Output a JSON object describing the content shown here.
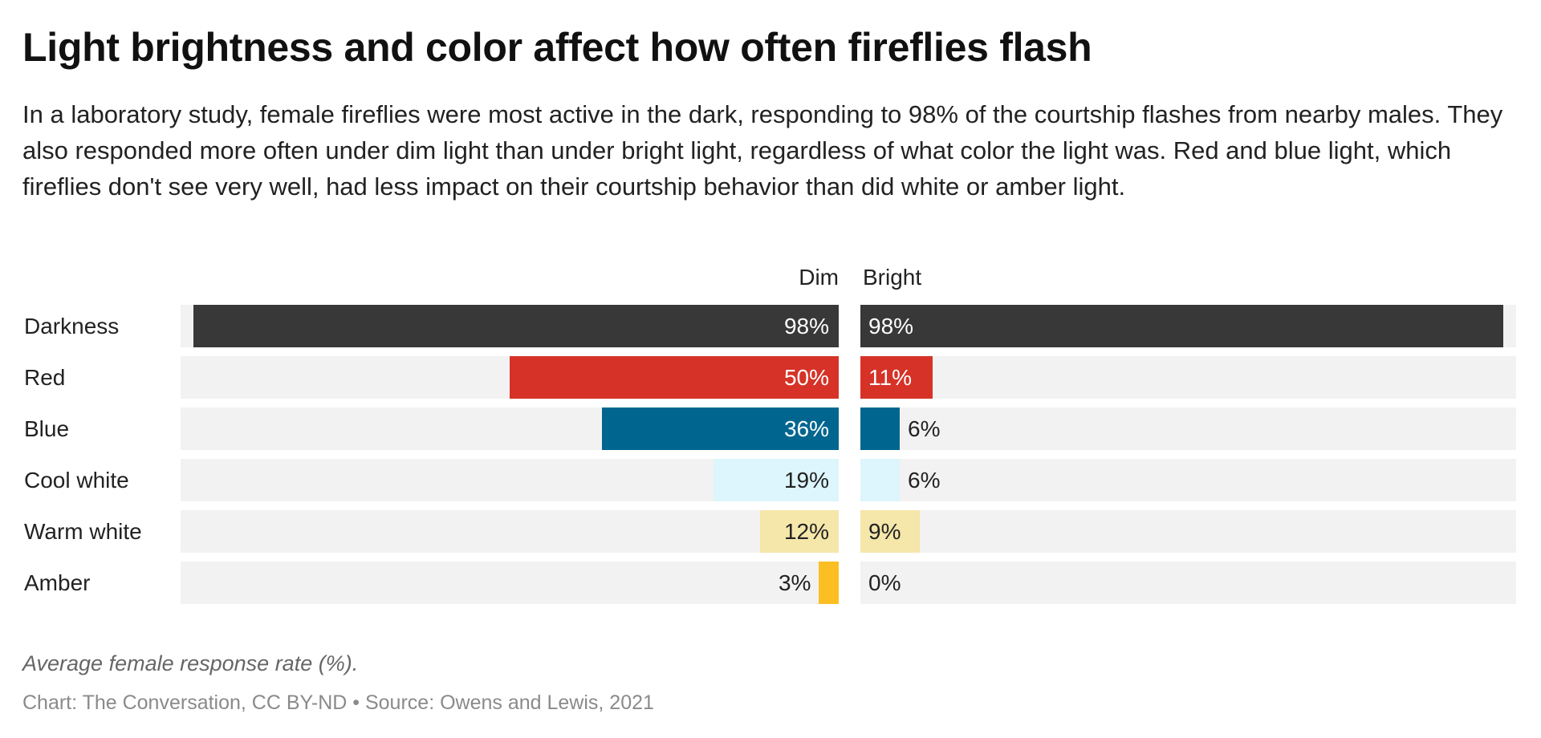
{
  "title": "Light brightness and color affect how often fireflies flash",
  "subtitle": "In a laboratory study, female fireflies were most active in the dark, responding to 98% of the courtship flashes from nearby males. They also responded more often under dim light than under bright light, regardless of what color the light was. Red and blue light, which fireflies don't see very well, had less impact on their courtship behavior than did white or amber light.",
  "note": "Average female response rate (%).",
  "source": "Chart: The Conversation, CC BY-ND • Source: Owens and Lewis, 2021",
  "chart_data": {
    "type": "bar",
    "orientation": "horizontal",
    "layout": "diverging from center (Dim extends left, Bright extends right)",
    "categories": [
      "Darkness",
      "Red",
      "Blue",
      "Cool white",
      "Warm white",
      "Amber"
    ],
    "series": [
      {
        "name": "Dim",
        "values": [
          98,
          50,
          36,
          19,
          12,
          3
        ],
        "labels": [
          "98%",
          "50%",
          "36%",
          "19%",
          "12%",
          "3%"
        ]
      },
      {
        "name": "Bright",
        "values": [
          98,
          11,
          6,
          6,
          9,
          0
        ],
        "labels": [
          "98%",
          "11%",
          "6%",
          "6%",
          "9%",
          "0%"
        ]
      }
    ],
    "colors": [
      "#383838",
      "#d63228",
      "#00668f",
      "#ddf5fc",
      "#f5e6aa",
      "#fbbf24"
    ],
    "label_colors": [
      "#ffffff",
      "#ffffff",
      "#ffffff",
      "#222222",
      "#222222",
      "#222222"
    ],
    "track_color": "#f2f2f2",
    "xlim": [
      0,
      100
    ],
    "grid": false
  }
}
